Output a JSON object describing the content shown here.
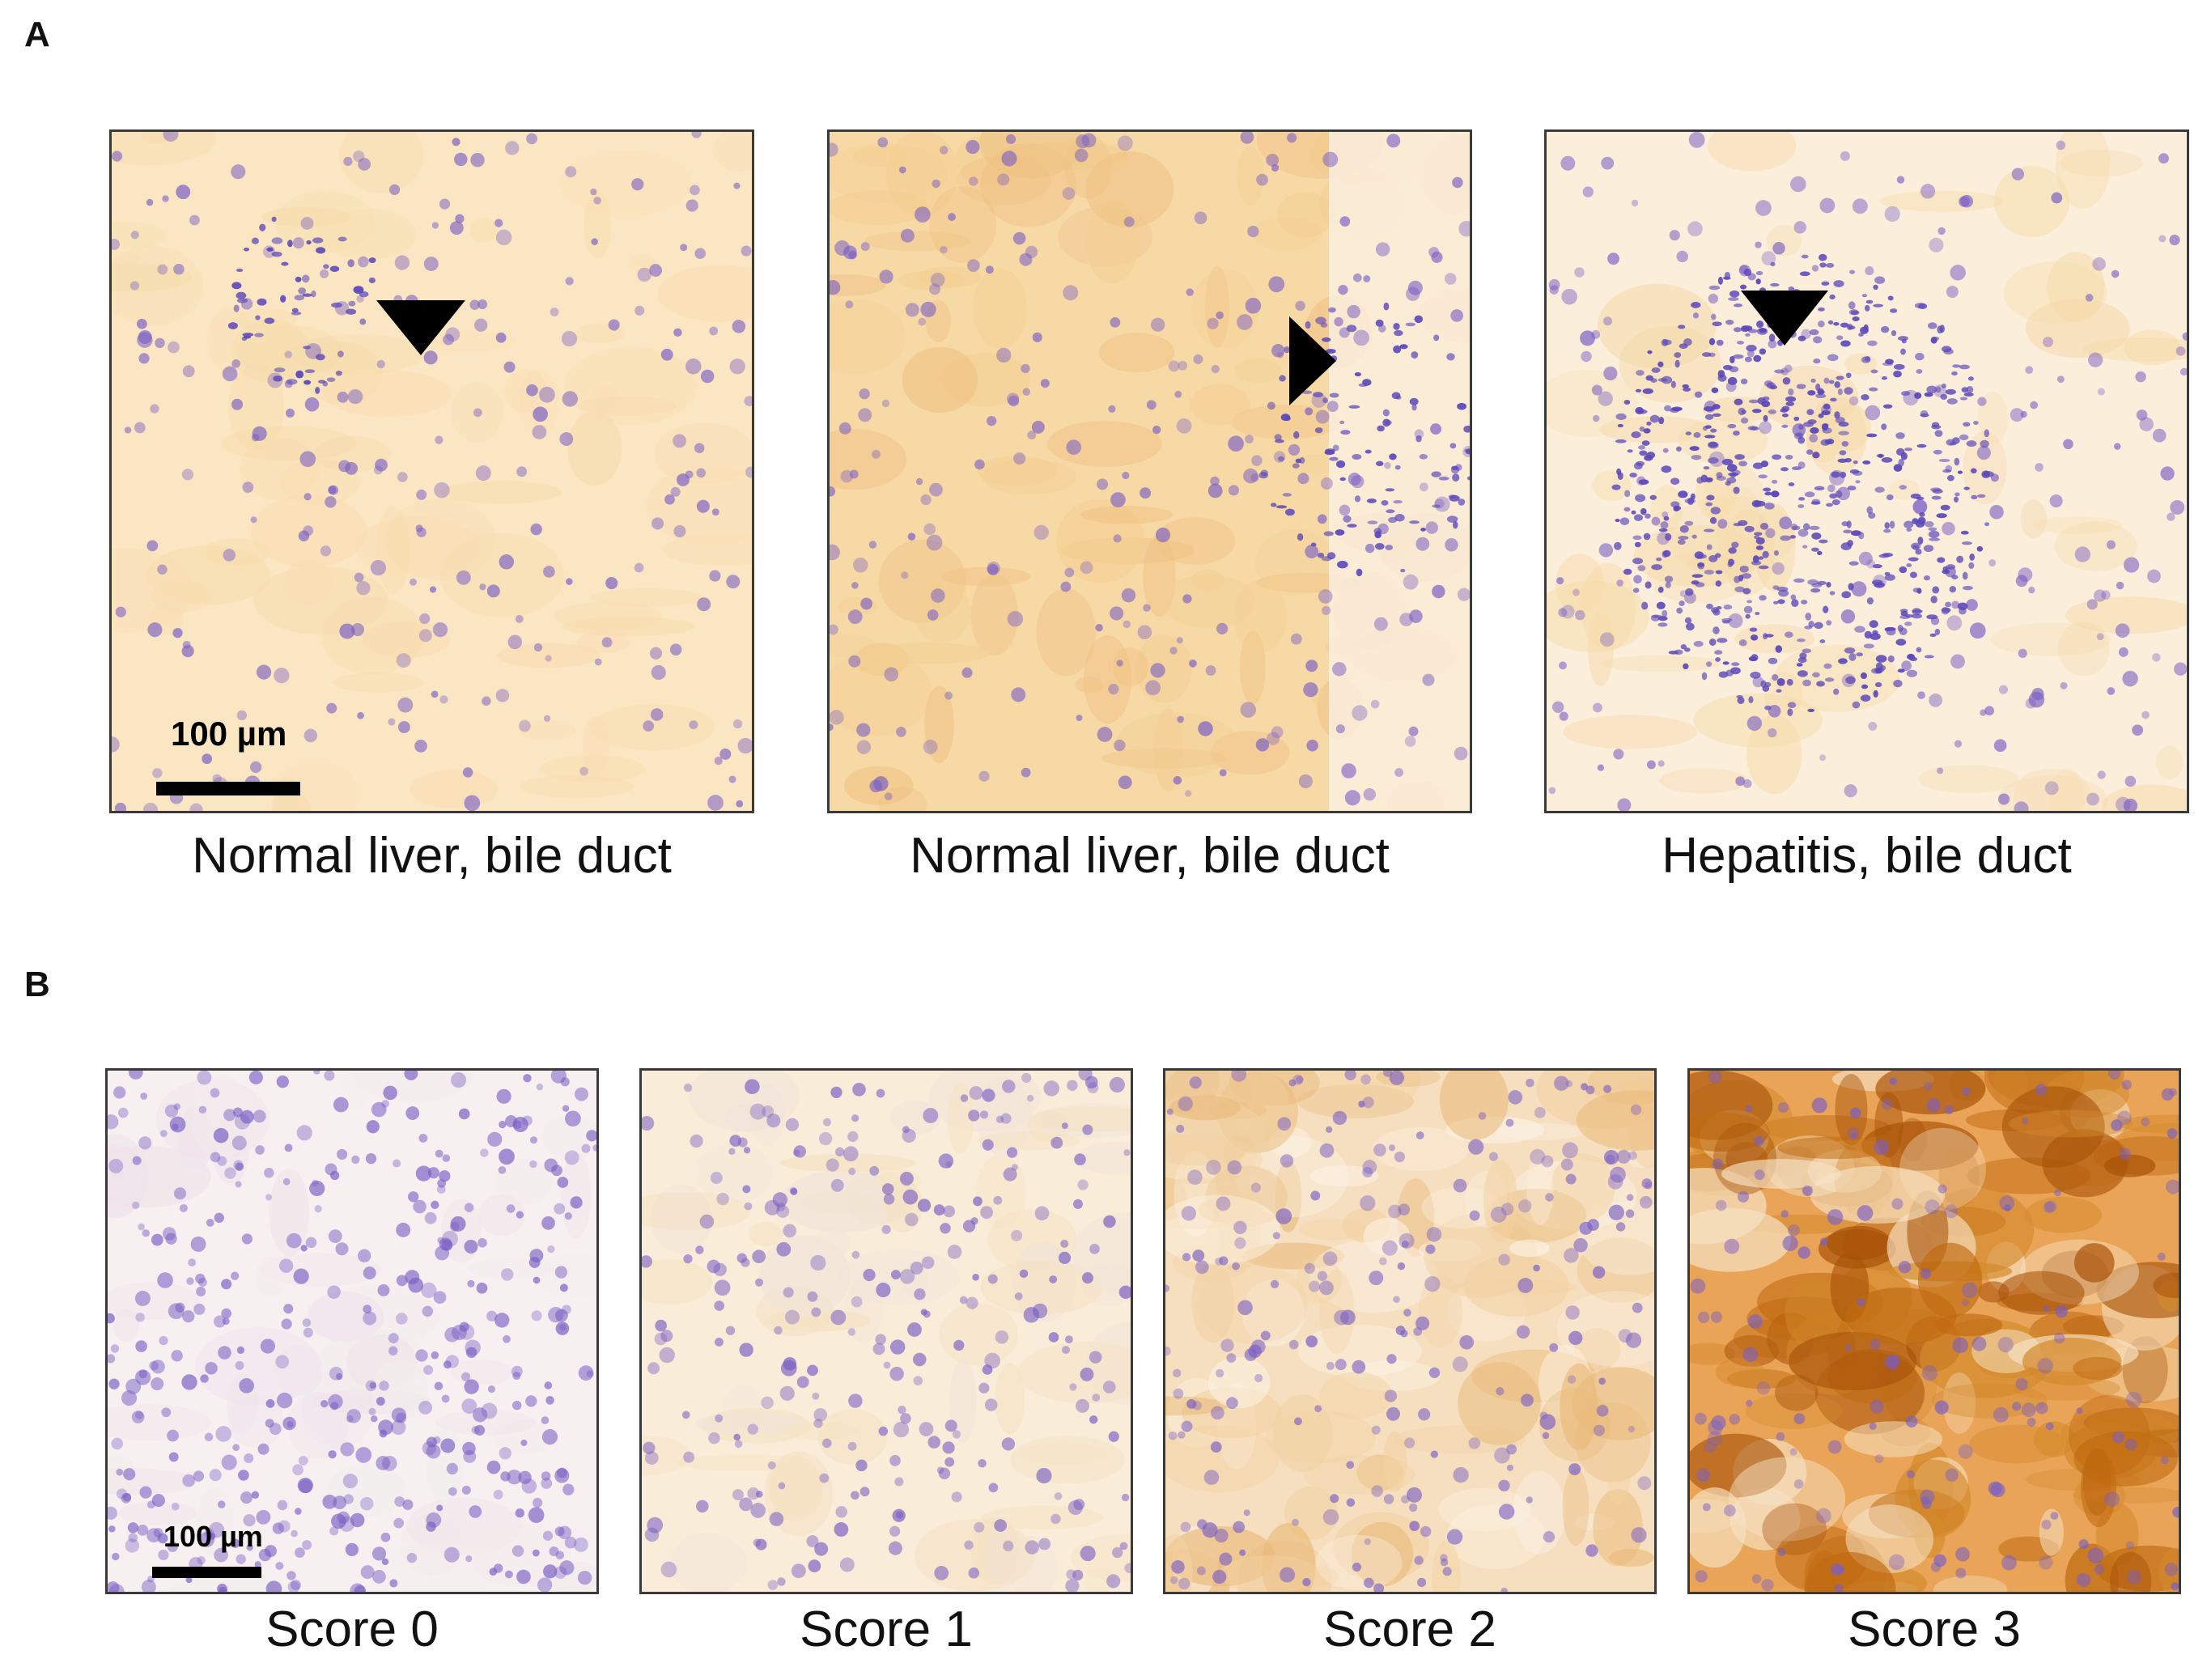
{
  "figure": {
    "panel_a": {
      "letter": "A",
      "images": [
        {
          "caption": "Normal liver, bile duct",
          "stain_intensity": "light",
          "arrowhead": "down-pointing-arrowhead"
        },
        {
          "caption": "Normal liver, bile duct",
          "stain_intensity": "moderate",
          "arrowhead": "right-pointing-arrowhead"
        },
        {
          "caption": "Hepatitis, bile duct",
          "stain_intensity": "light-with-infiltrate",
          "arrowhead": "down-pointing-arrowhead"
        }
      ],
      "scale_bar": "100 µm"
    },
    "panel_b": {
      "letter": "B",
      "images": [
        {
          "caption": "Score 0",
          "ihc_score": 0
        },
        {
          "caption": "Score 1",
          "ihc_score": 1
        },
        {
          "caption": "Score 2",
          "ihc_score": 2
        },
        {
          "caption": "Score 3",
          "ihc_score": 3
        }
      ],
      "scale_bar": "100 µm"
    },
    "colors": {
      "hematoxylin": "#7a5fc4",
      "dab_light": "#f6dcaa",
      "dab_moderate": "#efc183",
      "dab_strong": "#d48a2c",
      "dab_intense": "#c06a10"
    }
  }
}
